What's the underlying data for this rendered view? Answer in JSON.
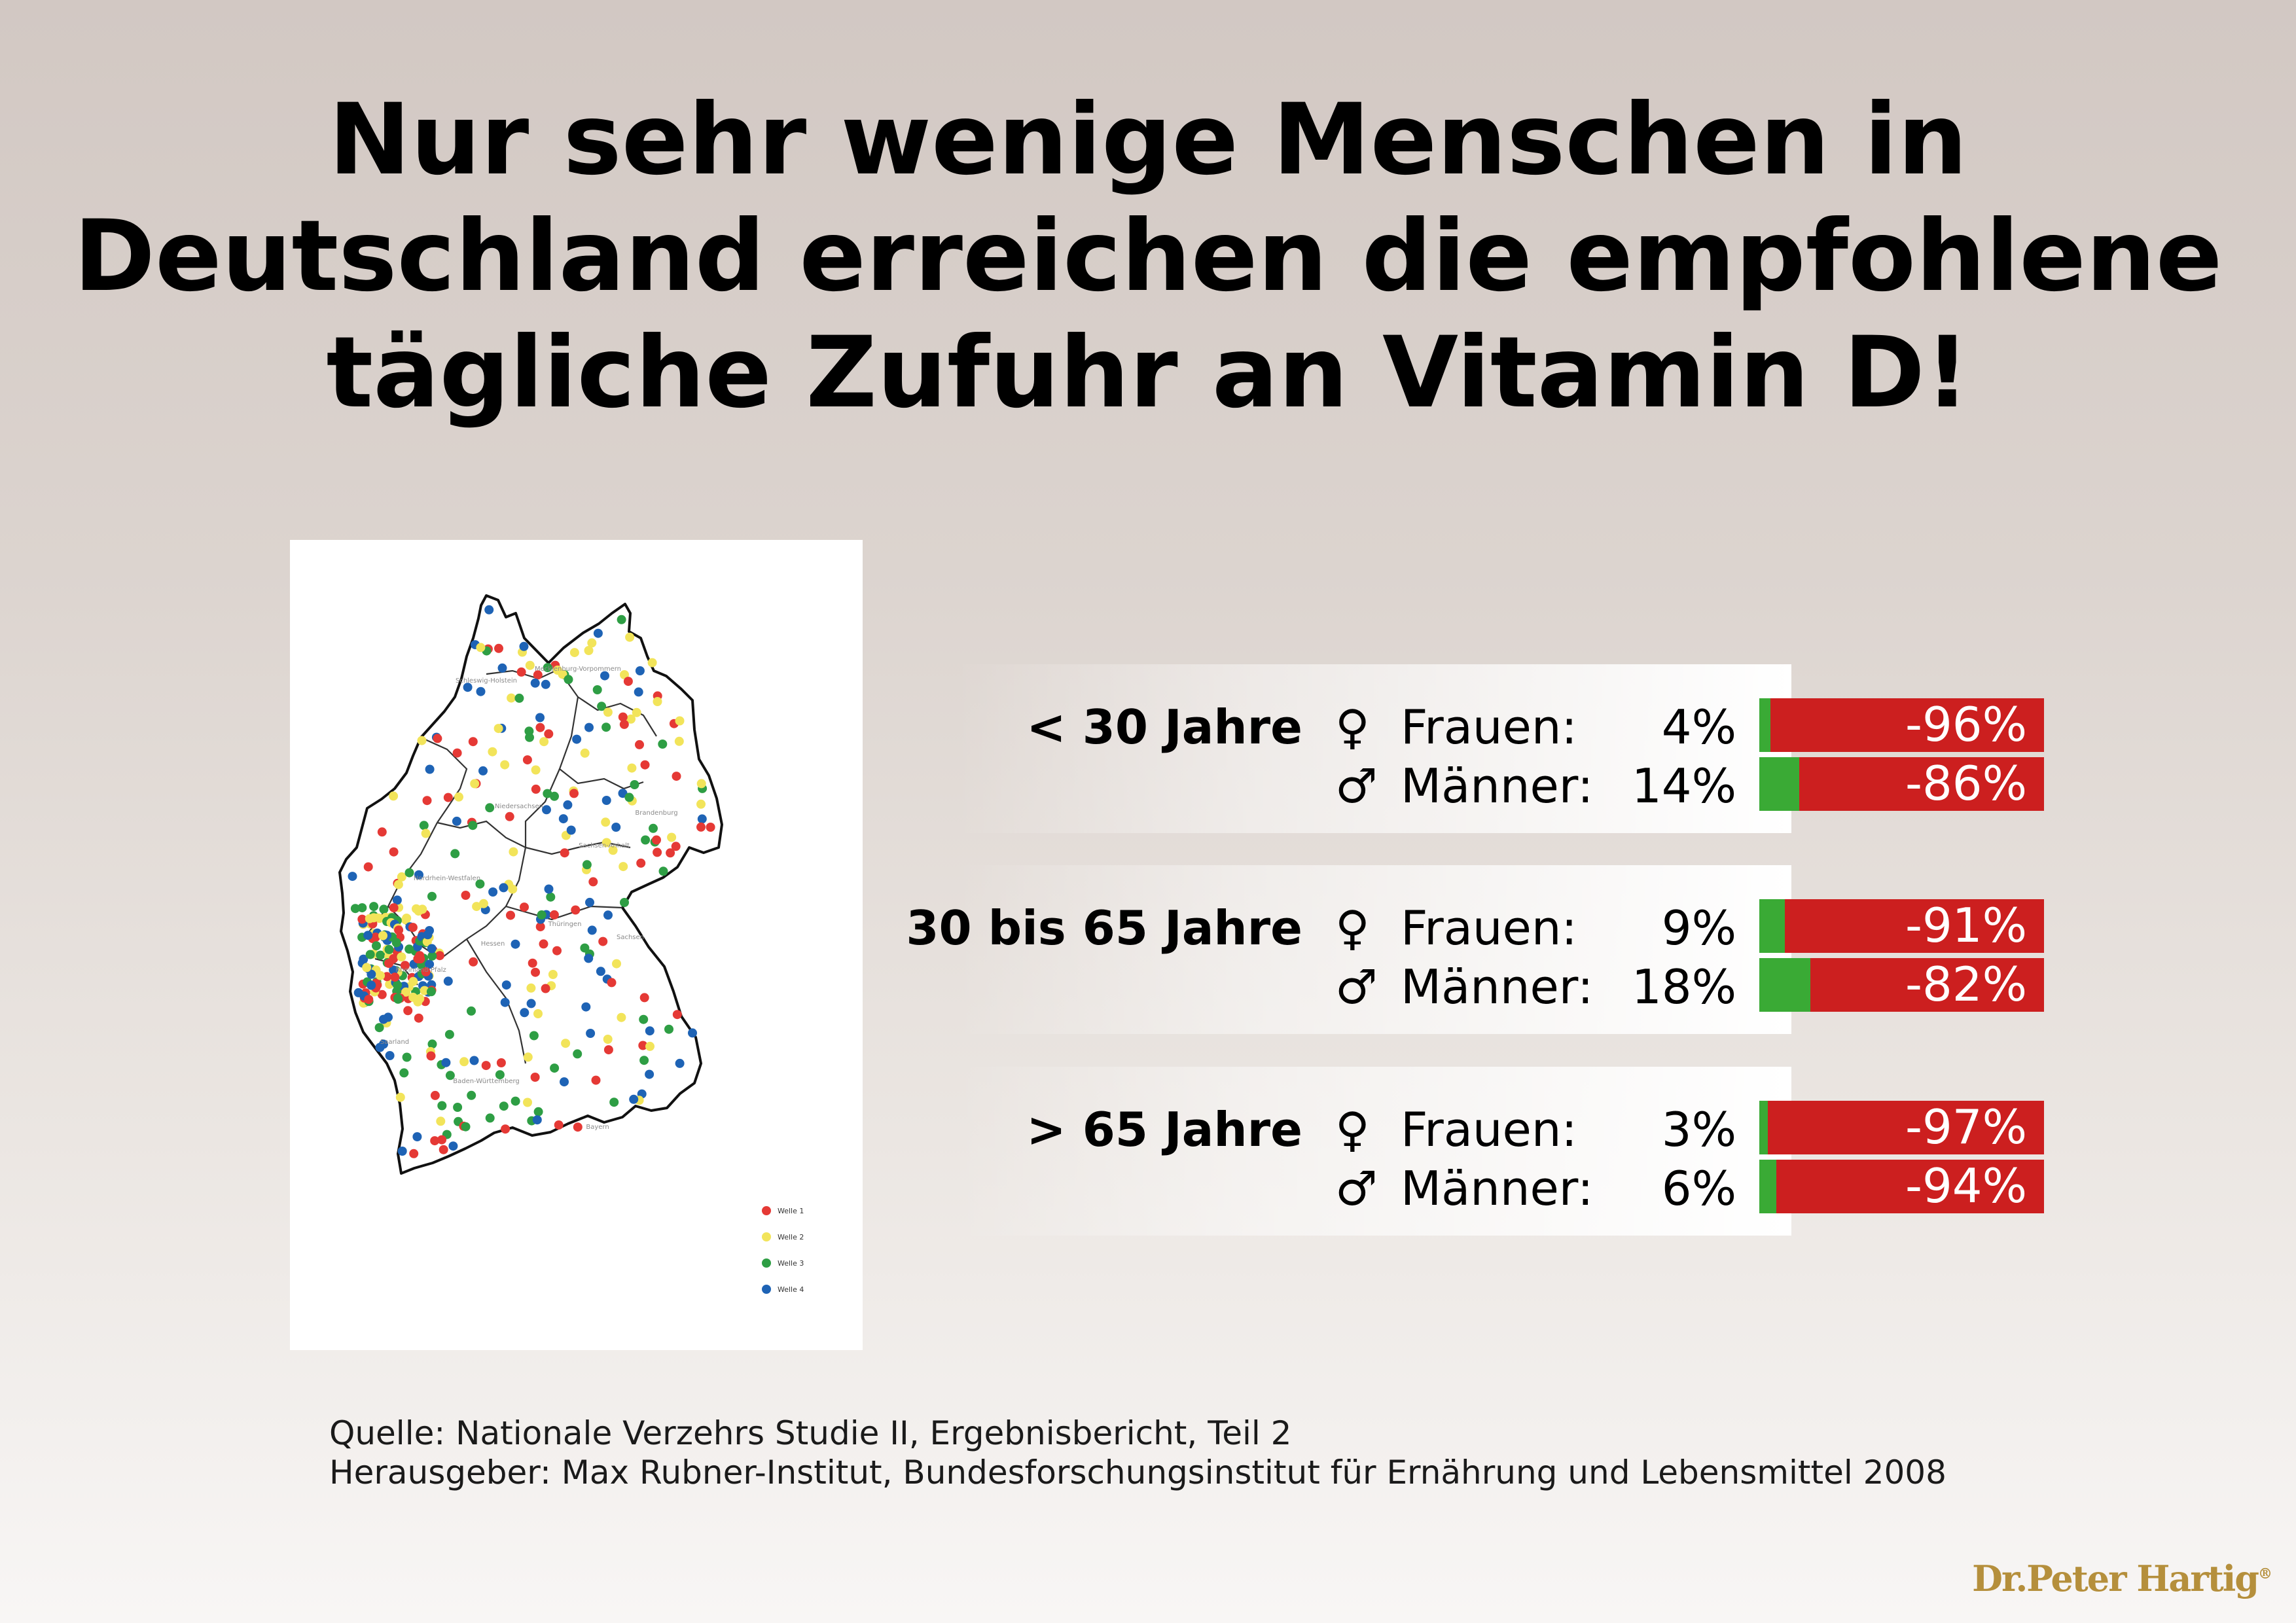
{
  "title": {
    "line1": "Nur sehr wenige Menschen in",
    "line2": "Deutschland erreichen die empfohlene",
    "line3": "tägliche Zufuhr an Vitamin D!"
  },
  "map": {
    "region_labels": [
      "Schleswig-Holstein",
      "Mecklenburg-Vorpommern",
      "Niedersachsen",
      "Brandenburg",
      "Sachsen-Anhalt",
      "Nordrhein-Westfalen",
      "Thüringen",
      "Sachsen",
      "Hessen",
      "Rheinland-Pfalz",
      "Saarland",
      "Baden-Württemberg",
      "Bayern"
    ],
    "legend": [
      {
        "label": "Welle 1",
        "color": "#e53935"
      },
      {
        "label": "Welle 2",
        "color": "#f2e45a"
      },
      {
        "label": "Welle 3",
        "color": "#2e9e44"
      },
      {
        "label": "Welle 4",
        "color": "#1e63b5"
      }
    ]
  },
  "colors": {
    "reached": "#3aaa35",
    "shortfall": "#cc1f1f"
  },
  "symbols": {
    "female": "♀",
    "male": "♂"
  },
  "chart_data": {
    "type": "bar",
    "orientation": "horizontal-stacked",
    "categories": [
      "< 30 Jahre ♀ Frauen",
      "< 30 Jahre ♂ Männer",
      "30 bis 65 Jahre ♀ Frauen",
      "30 bis 65 Jahre ♂ Männer",
      "> 65 Jahre ♀ Frauen",
      "> 65 Jahre ♂ Männer"
    ],
    "groups": [
      {
        "label": "< 30 Jahre",
        "rows": [
          {
            "sex": "female",
            "label": "Frauen:",
            "value": 4,
            "value_text": "4%",
            "shortfall": -96,
            "shortfall_text": "-96%"
          },
          {
            "sex": "male",
            "label": "Männer:",
            "value": 14,
            "value_text": "14%",
            "shortfall": -86,
            "shortfall_text": "-86%"
          }
        ]
      },
      {
        "label": "30 bis 65 Jahre",
        "rows": [
          {
            "sex": "female",
            "label": "Frauen:",
            "value": 9,
            "value_text": "9%",
            "shortfall": -91,
            "shortfall_text": "-91%"
          },
          {
            "sex": "male",
            "label": "Männer:",
            "value": 18,
            "value_text": "18%",
            "shortfall": -82,
            "shortfall_text": "-82%"
          }
        ]
      },
      {
        "label": "> 65 Jahre",
        "rows": [
          {
            "sex": "female",
            "label": "Frauen:",
            "value": 3,
            "value_text": "3%",
            "shortfall": -97,
            "shortfall_text": "-97%"
          },
          {
            "sex": "male",
            "label": "Männer:",
            "value": 6,
            "value_text": "6%",
            "shortfall": -94,
            "shortfall_text": "-94%"
          }
        ]
      }
    ],
    "xlim": [
      0,
      100
    ]
  },
  "source": {
    "line1": "Quelle: Nationale Verzehrs Studie II, Ergebnisbericht, Teil 2",
    "line2": "Herausgeber: Max Rubner-Institut, Bundesforschungsinstitut für Ernährung und Lebensmittel 2008"
  },
  "brand": {
    "name": "Dr.Peter Hartig",
    "mark": "®"
  }
}
